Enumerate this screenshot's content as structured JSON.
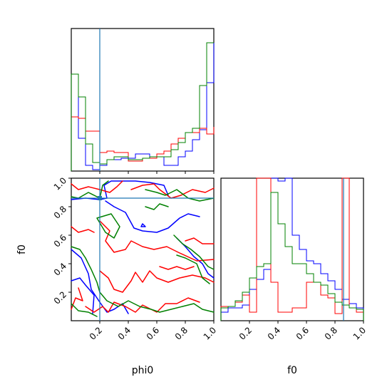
{
  "chart_data": {
    "type": "corner",
    "colors": {
      "series_a": "#0000ff",
      "series_b": "#ff0000",
      "series_c": "#008000",
      "truth": "#1f77b4"
    },
    "truths": {
      "phi0": 0.2,
      "f0": 0.86
    },
    "axes": {
      "phi0": {
        "label": "phi0",
        "range": [
          0,
          1
        ],
        "ticks": [
          "0.2",
          "0.4",
          "0.6",
          "0.8",
          "1.0"
        ]
      },
      "f0": {
        "label": "f0",
        "range": [
          0,
          1
        ],
        "ticks": [
          "0.2",
          "0.4",
          "0.6",
          "0.8",
          "1.0"
        ]
      }
    },
    "hist_phi0": {
      "bins": [
        0.0,
        0.05,
        0.1,
        0.15,
        0.2,
        0.25,
        0.3,
        0.35,
        0.4,
        0.45,
        0.5,
        0.55,
        0.6,
        0.65,
        0.7,
        0.75,
        0.8,
        0.85,
        0.9,
        0.95,
        1.0
      ],
      "series": [
        {
          "color": "blue",
          "values": [
            0.68,
            0.23,
            0.04,
            0.01,
            0.04,
            0.08,
            0.08,
            0.09,
            0.09,
            0.12,
            0.12,
            0.1,
            0.1,
            0.04,
            0.04,
            0.1,
            0.14,
            0.22,
            0.29,
            0.62,
            0.9
          ]
        },
        {
          "color": "red",
          "values": [
            0.38,
            0.37,
            0.28,
            0.28,
            0.13,
            0.14,
            0.13,
            0.13,
            0.07,
            0.07,
            0.09,
            0.09,
            0.12,
            0.14,
            0.19,
            0.23,
            0.27,
            0.27,
            0.3,
            0.26,
            0.31
          ]
        },
        {
          "color": "green",
          "values": [
            0.68,
            0.52,
            0.19,
            0.06,
            0.05,
            0.08,
            0.1,
            0.1,
            0.08,
            0.08,
            0.09,
            0.1,
            0.1,
            0.1,
            0.15,
            0.2,
            0.27,
            0.3,
            0.6,
            0.9,
            0.9
          ]
        }
      ]
    },
    "hist_f0": {
      "bins": [
        0.0,
        0.05,
        0.1,
        0.15,
        0.2,
        0.25,
        0.3,
        0.35,
        0.4,
        0.45,
        0.5,
        0.55,
        0.6,
        0.65,
        0.7,
        0.75,
        0.8,
        0.85,
        0.9,
        0.95,
        1.0
      ],
      "series": [
        {
          "color": "blue",
          "values": [
            0.06,
            0.09,
            0.09,
            0.11,
            0.22,
            0.29,
            0.36,
            1.0,
            0.98,
            1.0,
            0.6,
            0.5,
            0.42,
            0.4,
            0.33,
            0.28,
            0.22,
            0.15,
            0.12,
            0.09
          ]
        },
        {
          "color": "red",
          "values": [
            0.1,
            0.1,
            0.13,
            0.18,
            0.06,
            1.0,
            1.0,
            0.27,
            0.06,
            0.06,
            0.09,
            0.09,
            0.27,
            0.27,
            0.18,
            0.16,
            0.05,
            1.0,
            0.09,
            0.06
          ]
        },
        {
          "color": "green",
          "values": [
            0.09,
            0.1,
            0.14,
            0.2,
            0.3,
            0.38,
            0.4,
            0.9,
            0.68,
            0.52,
            0.4,
            0.4,
            0.33,
            0.27,
            0.25,
            0.19,
            0.13,
            0.11,
            0.09,
            0.08
          ]
        }
      ]
    },
    "contours_2d": {
      "x": "phi0",
      "y": "f0",
      "series": [
        {
          "color": "blue",
          "curves": [
            [
              [
                0.0,
                0.85
              ],
              [
                0.1,
                0.86
              ],
              [
                0.2,
                0.85
              ],
              [
                0.25,
                0.86
              ],
              [
                0.23,
                0.95
              ],
              [
                0.28,
                0.98
              ],
              [
                0.45,
                0.98
              ],
              [
                0.55,
                0.97
              ],
              [
                0.65,
                0.95
              ],
              [
                0.68,
                0.88
              ]
            ],
            [
              [
                0.24,
                0.84
              ],
              [
                0.3,
                0.8
              ],
              [
                0.38,
                0.76
              ],
              [
                0.44,
                0.65
              ],
              [
                0.5,
                0.63
              ],
              [
                0.6,
                0.62
              ],
              [
                0.68,
                0.65
              ],
              [
                0.76,
                0.72
              ],
              [
                0.82,
                0.75
              ],
              [
                0.9,
                0.73
              ]
            ],
            [
              [
                0.0,
                0.5
              ],
              [
                0.07,
                0.44
              ],
              [
                0.12,
                0.33
              ],
              [
                0.14,
                0.22
              ],
              [
                0.2,
                0.13
              ],
              [
                0.25,
                0.06
              ],
              [
                0.3,
                0.08
              ],
              [
                0.36,
                0.12
              ],
              [
                0.4,
                0.05
              ]
            ],
            [
              [
                0.74,
                0.58
              ],
              [
                0.8,
                0.52
              ],
              [
                0.86,
                0.45
              ],
              [
                0.92,
                0.4
              ],
              [
                0.96,
                0.33
              ],
              [
                1.0,
                0.3
              ]
            ],
            [
              [
                0.0,
                0.28
              ],
              [
                0.06,
                0.3
              ],
              [
                0.1,
                0.25
              ],
              [
                0.16,
                0.18
              ],
              [
                0.15,
                0.05
              ]
            ],
            [
              [
                0.5,
                0.68
              ],
              [
                0.52,
                0.66
              ],
              [
                0.49,
                0.66
              ],
              [
                0.5,
                0.68
              ]
            ]
          ]
        },
        {
          "color": "red",
          "curves": [
            [
              [
                0.0,
                0.96
              ],
              [
                0.05,
                0.92
              ],
              [
                0.12,
                0.94
              ],
              [
                0.2,
                0.92
              ],
              [
                0.27,
                0.9
              ],
              [
                0.32,
                0.94
              ],
              [
                0.36,
                0.98
              ]
            ],
            [
              [
                0.42,
                0.92
              ],
              [
                0.5,
                0.95
              ],
              [
                0.58,
                0.96
              ],
              [
                0.62,
                0.92
              ],
              [
                0.7,
                0.86
              ],
              [
                0.77,
                0.88
              ],
              [
                0.85,
                0.92
              ],
              [
                0.94,
                0.9
              ],
              [
                1.0,
                0.93
              ]
            ],
            [
              [
                0.2,
                0.7
              ],
              [
                0.27,
                0.63
              ],
              [
                0.24,
                0.56
              ],
              [
                0.3,
                0.48
              ],
              [
                0.38,
                0.5
              ],
              [
                0.42,
                0.56
              ],
              [
                0.5,
                0.52
              ],
              [
                0.58,
                0.5
              ],
              [
                0.67,
                0.52
              ],
              [
                0.75,
                0.48
              ],
              [
                0.88,
                0.42
              ],
              [
                1.0,
                0.43
              ]
            ],
            [
              [
                0.2,
                0.35
              ],
              [
                0.26,
                0.3
              ],
              [
                0.3,
                0.22
              ],
              [
                0.36,
                0.2
              ],
              [
                0.42,
                0.28
              ],
              [
                0.45,
                0.34
              ],
              [
                0.5,
                0.27
              ],
              [
                0.55,
                0.35
              ],
              [
                0.6,
                0.3
              ],
              [
                0.68,
                0.27
              ],
              [
                0.76,
                0.3
              ],
              [
                0.85,
                0.32
              ],
              [
                0.94,
                0.3
              ],
              [
                1.0,
                0.27
              ]
            ],
            [
              [
                0.1,
                0.1
              ],
              [
                0.16,
                0.06
              ],
              [
                0.22,
                0.1
              ],
              [
                0.26,
                0.06
              ],
              [
                0.3,
                0.13
              ],
              [
                0.38,
                0.1
              ],
              [
                0.45,
                0.06
              ],
              [
                0.5,
                0.11
              ],
              [
                0.6,
                0.06
              ],
              [
                0.66,
                0.12
              ],
              [
                0.74,
                0.12
              ],
              [
                0.82,
                0.16
              ],
              [
                0.9,
                0.13
              ]
            ],
            [
              [
                0.0,
                0.08
              ],
              [
                0.03,
                0.16
              ],
              [
                0.08,
                0.14
              ],
              [
                0.05,
                0.23
              ]
            ],
            [
              [
                0.62,
                0.38
              ],
              [
                0.68,
                0.36
              ],
              [
                0.74,
                0.38
              ],
              [
                0.8,
                0.36
              ],
              [
                0.86,
                0.38
              ]
            ],
            [
              [
                0.8,
                0.56
              ],
              [
                0.86,
                0.58
              ],
              [
                0.92,
                0.54
              ],
              [
                1.0,
                0.54
              ]
            ],
            [
              [
                0.0,
                0.66
              ],
              [
                0.05,
                0.62
              ],
              [
                0.12,
                0.64
              ],
              [
                0.16,
                0.62
              ]
            ]
          ]
        },
        {
          "color": "green",
          "curves": [
            [
              [
                0.0,
                0.87
              ],
              [
                0.05,
                0.86
              ],
              [
                0.12,
                0.9
              ],
              [
                0.2,
                0.86
              ],
              [
                0.22,
                0.95
              ],
              [
                0.26,
                0.98
              ]
            ],
            [
              [
                0.52,
                0.92
              ],
              [
                0.6,
                0.9
              ],
              [
                0.66,
                0.88
              ],
              [
                0.74,
                0.92
              ],
              [
                0.82,
                0.86
              ],
              [
                0.9,
                0.84
              ],
              [
                1.0,
                0.86
              ]
            ],
            [
              [
                0.18,
                0.72
              ],
              [
                0.24,
                0.62
              ],
              [
                0.3,
                0.58
              ],
              [
                0.34,
                0.66
              ],
              [
                0.28,
                0.75
              ],
              [
                0.18,
                0.72
              ]
            ],
            [
              [
                0.0,
                0.52
              ],
              [
                0.06,
                0.5
              ],
              [
                0.1,
                0.44
              ],
              [
                0.14,
                0.36
              ],
              [
                0.18,
                0.27
              ],
              [
                0.2,
                0.2
              ],
              [
                0.25,
                0.14
              ],
              [
                0.33,
                0.1
              ],
              [
                0.4,
                0.14
              ],
              [
                0.48,
                0.1
              ],
              [
                0.56,
                0.08
              ],
              [
                0.62,
                0.06
              ],
              [
                0.7,
                0.08
              ],
              [
                0.78,
                0.1
              ],
              [
                0.86,
                0.12
              ],
              [
                0.92,
                0.08
              ],
              [
                1.0,
                0.06
              ]
            ],
            [
              [
                0.72,
                0.6
              ],
              [
                0.78,
                0.54
              ],
              [
                0.84,
                0.5
              ],
              [
                0.9,
                0.45
              ],
              [
                0.96,
                0.38
              ],
              [
                1.0,
                0.36
              ]
            ],
            [
              [
                0.74,
                0.46
              ],
              [
                0.8,
                0.44
              ],
              [
                0.88,
                0.4
              ],
              [
                0.92,
                0.3
              ],
              [
                0.97,
                0.26
              ]
            ],
            [
              [
                0.0,
                0.12
              ],
              [
                0.05,
                0.07
              ],
              [
                0.12,
                0.06
              ],
              [
                0.18,
                0.03
              ]
            ],
            [
              [
                0.52,
                0.8
              ],
              [
                0.58,
                0.78
              ],
              [
                0.62,
                0.82
              ],
              [
                0.68,
                0.8
              ]
            ]
          ]
        }
      ]
    }
  }
}
